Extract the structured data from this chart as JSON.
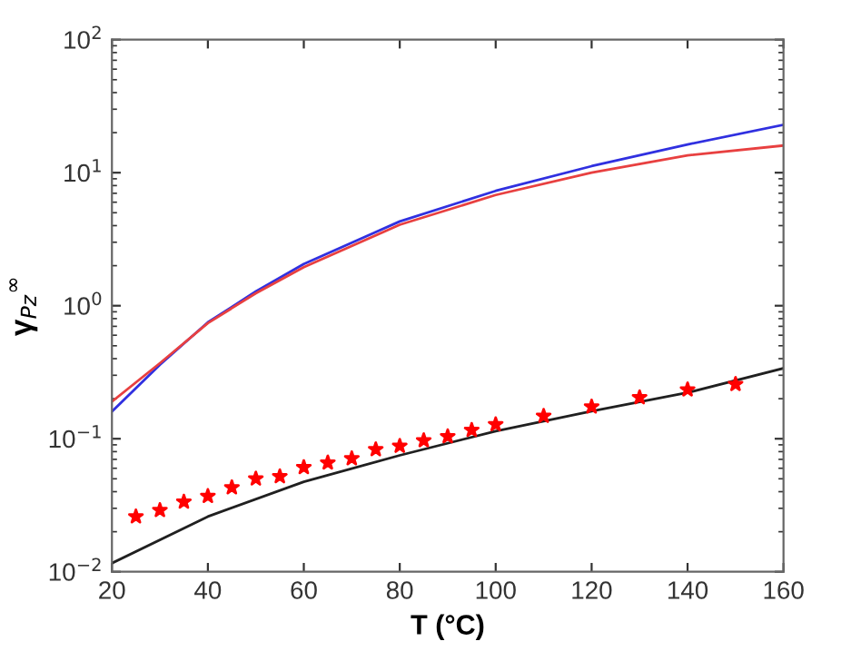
{
  "chart_data": {
    "type": "line",
    "xlabel": "T (°C)",
    "ylabel": "γ$_{Pz}$$^{∞}$",
    "log": "y",
    "grid": false,
    "xlim": [
      20,
      160
    ],
    "xticks": [
      20,
      40,
      60,
      80,
      100,
      120,
      140,
      160
    ],
    "ylim": [
      0.01,
      100
    ],
    "yticks": [
      {
        "value": 0.01,
        "label": "10$^{−2}$"
      },
      {
        "value": 0.1,
        "label": "10$^{−1}$"
      },
      {
        "value": 1,
        "label": "10$^{0}$"
      },
      {
        "value": 10,
        "label": "10$^{1}$"
      },
      {
        "value": 100,
        "label": "10$^{2}$"
      }
    ],
    "series": [
      {
        "color": "#3030e0",
        "marker": "none",
        "x": [
          20,
          30,
          40,
          50,
          60,
          80,
          100,
          120,
          140,
          160
        ],
        "values": [
          0.16,
          0.36,
          0.75,
          1.28,
          2.06,
          4.3,
          7.3,
          11.2,
          16.3,
          22.9
        ]
      },
      {
        "color": "#e84040",
        "marker": "none",
        "x": [
          20,
          30,
          40,
          50,
          60,
          80,
          100,
          120,
          140,
          160
        ],
        "values": [
          0.19,
          0.37,
          0.74,
          1.24,
          1.95,
          4.06,
          6.8,
          10.0,
          13.5,
          16.0
        ]
      },
      {
        "color": "#202020",
        "marker": "none",
        "x": [
          20,
          40,
          60,
          80,
          100,
          120,
          140,
          160
        ],
        "values": [
          0.0116,
          0.026,
          0.0475,
          0.075,
          0.114,
          0.161,
          0.222,
          0.339
        ]
      },
      {
        "type": "scatter",
        "color": "#ff0000",
        "marker": "star",
        "x": [
          25,
          30,
          35,
          40,
          45,
          50,
          55,
          60,
          65,
          70,
          75,
          80,
          85,
          90,
          95,
          100,
          110,
          120,
          130,
          140,
          150
        ],
        "values": [
          0.026,
          0.029,
          0.0335,
          0.037,
          0.043,
          0.05,
          0.052,
          0.061,
          0.066,
          0.071,
          0.083,
          0.088,
          0.097,
          0.104,
          0.116,
          0.128,
          0.148,
          0.174,
          0.204,
          0.234,
          0.257
        ]
      }
    ]
  }
}
